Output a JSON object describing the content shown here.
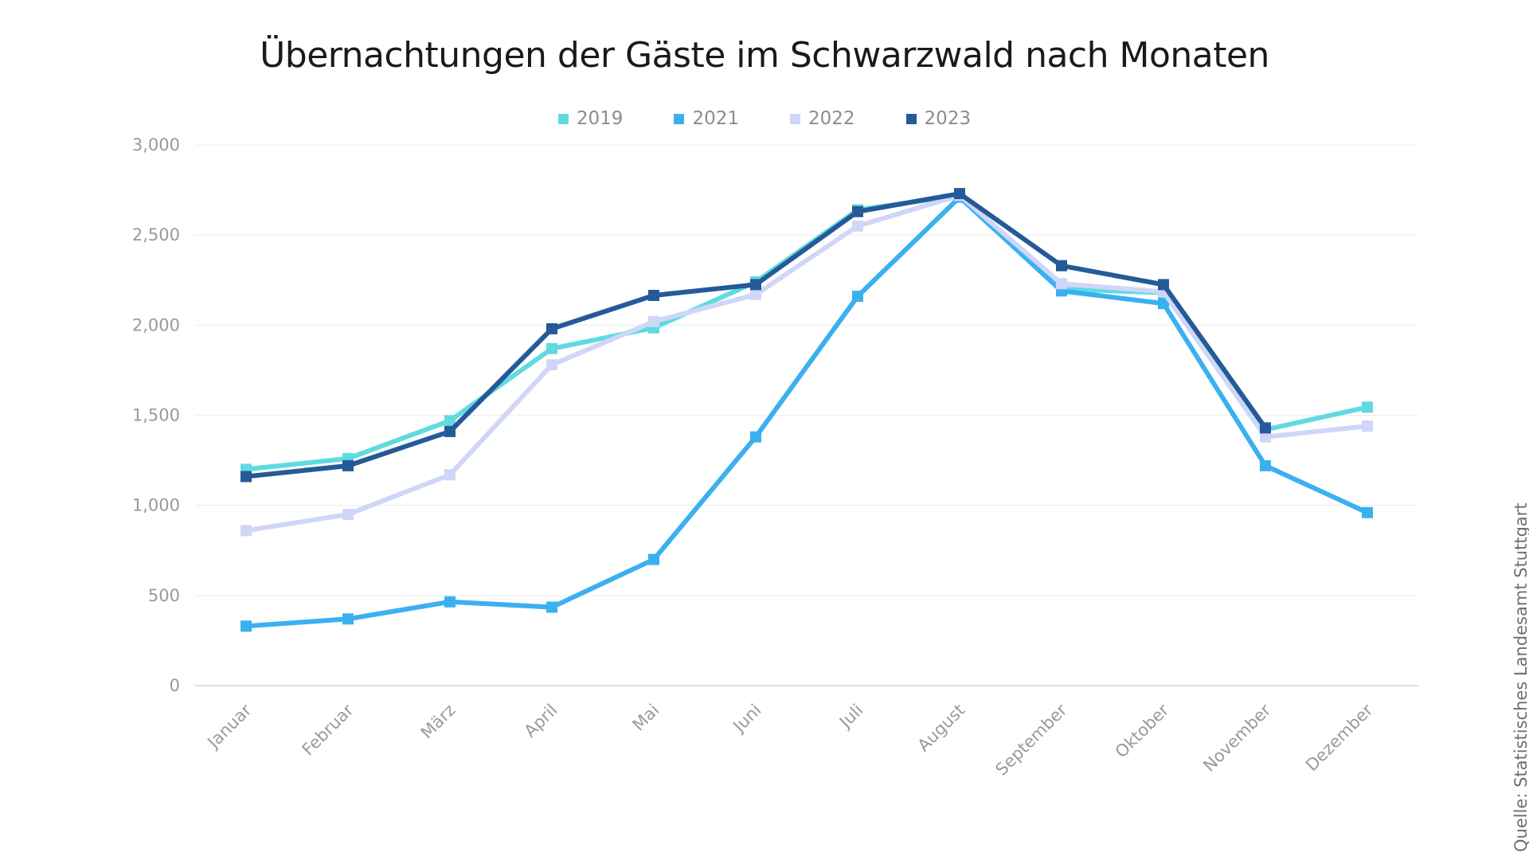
{
  "chart_data": {
    "type": "line",
    "title": "Übernachtungen der Gäste im Schwarzwald nach Monaten",
    "xlabel": "",
    "ylabel": "",
    "ylim": [
      0,
      3000
    ],
    "yticks": [
      0,
      500,
      1000,
      1500,
      2000,
      2500,
      3000
    ],
    "ytick_labels": [
      "0",
      "500",
      "1,000",
      "1,500",
      "2,000",
      "2,500",
      "3,000"
    ],
    "grid": true,
    "legend_position": "top-center",
    "categories": [
      "Januar",
      "Februar",
      "März",
      "April",
      "Mai",
      "Juni",
      "Juli",
      "August",
      "September",
      "Oktober",
      "November",
      "Dezember"
    ],
    "series": [
      {
        "name": "2019",
        "color": "#5fdbe0",
        "values": [
          1200,
          1260,
          1470,
          1870,
          1985,
          2240,
          2640,
          2720,
          2200,
          2180,
          1420,
          1545
        ]
      },
      {
        "name": "2021",
        "color": "#3bb0f0",
        "values": [
          330,
          370,
          465,
          435,
          700,
          1380,
          2160,
          2710,
          2190,
          2120,
          1220,
          960
        ]
      },
      {
        "name": "2022",
        "color": "#cfd6f7",
        "values": [
          860,
          950,
          1170,
          1780,
          2020,
          2170,
          2550,
          2720,
          2230,
          2185,
          1380,
          1440
        ]
      },
      {
        "name": "2023",
        "color": "#255a98",
        "values": [
          1160,
          1220,
          1410,
          1980,
          2165,
          2225,
          2630,
          2730,
          2330,
          2225,
          1430,
          null
        ]
      }
    ],
    "source": "Quelle:  Statistisches Landesamt Stuttgart"
  }
}
